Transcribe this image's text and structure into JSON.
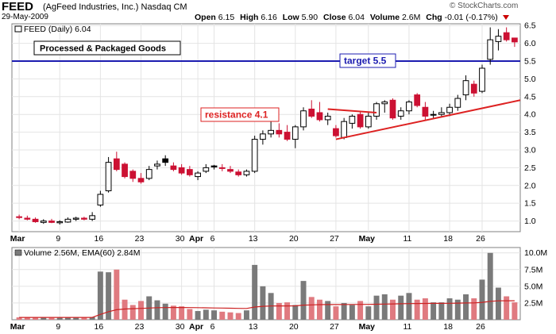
{
  "header": {
    "ticker": "FEED",
    "company": "(AgFeed Industries, Inc.)",
    "exchange": "Nasdaq CM",
    "date": "29-May-2009",
    "brand": "© StockCharts.com",
    "quote": [
      {
        "label": "Open",
        "value": "6.15"
      },
      {
        "label": "High",
        "value": "6.16"
      },
      {
        "label": "Low",
        "value": "5.90"
      },
      {
        "label": "Close",
        "value": "6.04"
      },
      {
        "label": "Volume",
        "value": "2.6M"
      },
      {
        "label": "Chg",
        "value": "-0.01 (-0.17%)"
      }
    ]
  },
  "chart_data": [
    {
      "type": "candlestick",
      "legend": "FEED (Daily) 6.04",
      "ylim": [
        0.7,
        6.55
      ],
      "yticks": [
        1.0,
        1.5,
        2.0,
        2.5,
        3.0,
        3.5,
        4.0,
        4.5,
        5.0,
        5.5,
        6.0,
        6.5
      ],
      "xticks": [
        {
          "label": "Mar",
          "i": 0,
          "bold": true
        },
        {
          "label": "9",
          "i": 5,
          "bold": false
        },
        {
          "label": "16",
          "i": 10,
          "bold": false
        },
        {
          "label": "23",
          "i": 15,
          "bold": false
        },
        {
          "label": "30",
          "i": 20,
          "bold": false
        },
        {
          "label": "Apr",
          "i": 22,
          "bold": true
        },
        {
          "label": "6",
          "i": 24,
          "bold": false
        },
        {
          "label": "13",
          "i": 29,
          "bold": false
        },
        {
          "label": "20",
          "i": 34,
          "bold": false
        },
        {
          "label": "27",
          "i": 39,
          "bold": false
        },
        {
          "label": "May",
          "i": 43,
          "bold": true
        },
        {
          "label": "11",
          "i": 48,
          "bold": false
        },
        {
          "label": "18",
          "i": 53,
          "bold": false
        },
        {
          "label": "26",
          "i": 57,
          "bold": false
        }
      ],
      "annotations": {
        "sector": "Processed & Packaged Goods",
        "target": {
          "label": "target 5.5",
          "value": 5.5
        },
        "resistance": {
          "label": "resistance 4.1",
          "start": [
            38,
            4.15
          ],
          "end": [
            44,
            4.05
          ]
        },
        "trendline": {
          "start": [
            39,
            3.3
          ],
          "end": [
            60,
            4.4
          ]
        }
      },
      "candles": [
        {
          "o": 1.12,
          "h": 1.18,
          "l": 1.05,
          "c": 1.1
        },
        {
          "o": 1.08,
          "h": 1.15,
          "l": 1.02,
          "c": 1.05
        },
        {
          "o": 1.05,
          "h": 1.1,
          "l": 0.95,
          "c": 0.98
        },
        {
          "o": 0.96,
          "h": 1.05,
          "l": 0.92,
          "c": 1.0
        },
        {
          "o": 1.0,
          "h": 1.06,
          "l": 0.94,
          "c": 0.96
        },
        {
          "o": 0.95,
          "h": 1.02,
          "l": 0.9,
          "c": 0.98
        },
        {
          "o": 0.97,
          "h": 1.1,
          "l": 0.95,
          "c": 1.05
        },
        {
          "o": 1.05,
          "h": 1.12,
          "l": 1.0,
          "c": 1.08
        },
        {
          "o": 1.08,
          "h": 1.12,
          "l": 1.02,
          "c": 1.05
        },
        {
          "o": 1.05,
          "h": 1.25,
          "l": 1.0,
          "c": 1.15
        },
        {
          "o": 1.45,
          "h": 1.85,
          "l": 1.4,
          "c": 1.75
        },
        {
          "o": 1.85,
          "h": 2.8,
          "l": 1.8,
          "c": 2.65
        },
        {
          "o": 2.75,
          "h": 2.95,
          "l": 2.4,
          "c": 2.45
        },
        {
          "o": 2.6,
          "h": 2.65,
          "l": 2.2,
          "c": 2.25
        },
        {
          "o": 2.4,
          "h": 2.45,
          "l": 2.1,
          "c": 2.2
        },
        {
          "o": 2.2,
          "h": 2.35,
          "l": 2.05,
          "c": 2.1
        },
        {
          "o": 2.2,
          "h": 2.55,
          "l": 2.15,
          "c": 2.45
        },
        {
          "o": 2.55,
          "h": 2.7,
          "l": 2.45,
          "c": 2.6
        },
        {
          "o": 2.75,
          "h": 2.85,
          "l": 2.55,
          "c": 2.65
        },
        {
          "o": 2.55,
          "h": 2.65,
          "l": 2.4,
          "c": 2.45
        },
        {
          "o": 2.5,
          "h": 2.6,
          "l": 2.3,
          "c": 2.35
        },
        {
          "o": 2.45,
          "h": 2.55,
          "l": 2.25,
          "c": 2.3
        },
        {
          "o": 2.25,
          "h": 2.4,
          "l": 2.15,
          "c": 2.35
        },
        {
          "o": 2.4,
          "h": 2.6,
          "l": 2.35,
          "c": 2.5
        },
        {
          "o": 2.55,
          "h": 2.58,
          "l": 2.45,
          "c": 2.52
        },
        {
          "o": 2.5,
          "h": 2.6,
          "l": 2.4,
          "c": 2.48
        },
        {
          "o": 2.45,
          "h": 2.55,
          "l": 2.35,
          "c": 2.4
        },
        {
          "o": 2.38,
          "h": 2.45,
          "l": 2.25,
          "c": 2.3
        },
        {
          "o": 2.3,
          "h": 2.45,
          "l": 2.25,
          "c": 2.4
        },
        {
          "o": 2.4,
          "h": 3.4,
          "l": 2.35,
          "c": 3.3
        },
        {
          "o": 3.3,
          "h": 3.55,
          "l": 3.15,
          "c": 3.45
        },
        {
          "o": 3.45,
          "h": 3.85,
          "l": 3.35,
          "c": 3.55
        },
        {
          "o": 3.55,
          "h": 3.75,
          "l": 3.35,
          "c": 3.45
        },
        {
          "o": 3.5,
          "h": 3.7,
          "l": 3.25,
          "c": 3.3
        },
        {
          "o": 3.3,
          "h": 3.7,
          "l": 3.05,
          "c": 3.65
        },
        {
          "o": 3.65,
          "h": 4.2,
          "l": 3.55,
          "c": 4.1
        },
        {
          "o": 4.15,
          "h": 4.4,
          "l": 3.9,
          "c": 3.95
        },
        {
          "o": 4.05,
          "h": 4.35,
          "l": 3.8,
          "c": 3.85
        },
        {
          "o": 3.85,
          "h": 4.05,
          "l": 3.7,
          "c": 3.95
        },
        {
          "o": 3.6,
          "h": 3.7,
          "l": 3.35,
          "c": 3.4
        },
        {
          "o": 3.35,
          "h": 3.9,
          "l": 3.3,
          "c": 3.8
        },
        {
          "o": 3.75,
          "h": 4.0,
          "l": 3.6,
          "c": 3.95
        },
        {
          "o": 4.0,
          "h": 4.1,
          "l": 3.6,
          "c": 3.65
        },
        {
          "o": 3.65,
          "h": 4.05,
          "l": 3.6,
          "c": 3.95
        },
        {
          "o": 3.95,
          "h": 4.35,
          "l": 3.85,
          "c": 4.3
        },
        {
          "o": 4.3,
          "h": 4.4,
          "l": 4.05,
          "c": 4.35
        },
        {
          "o": 4.4,
          "h": 4.45,
          "l": 3.85,
          "c": 3.9
        },
        {
          "o": 3.95,
          "h": 4.2,
          "l": 3.85,
          "c": 4.1
        },
        {
          "o": 4.1,
          "h": 4.4,
          "l": 4.0,
          "c": 4.35
        },
        {
          "o": 4.55,
          "h": 4.6,
          "l": 4.2,
          "c": 4.25
        },
        {
          "o": 4.2,
          "h": 4.35,
          "l": 3.85,
          "c": 3.95
        },
        {
          "o": 3.98,
          "h": 4.1,
          "l": 3.9,
          "c": 4.0
        },
        {
          "o": 4.0,
          "h": 4.2,
          "l": 3.95,
          "c": 4.05
        },
        {
          "o": 4.05,
          "h": 4.3,
          "l": 3.95,
          "c": 4.2
        },
        {
          "o": 4.2,
          "h": 4.55,
          "l": 4.1,
          "c": 4.45
        },
        {
          "o": 4.55,
          "h": 5.1,
          "l": 4.4,
          "c": 4.95
        },
        {
          "o": 4.85,
          "h": 4.95,
          "l": 4.5,
          "c": 4.6
        },
        {
          "o": 4.65,
          "h": 5.4,
          "l": 4.6,
          "c": 5.3
        },
        {
          "o": 5.55,
          "h": 6.45,
          "l": 5.4,
          "c": 6.1
        },
        {
          "o": 6.05,
          "h": 6.4,
          "l": 5.8,
          "c": 6.2
        },
        {
          "o": 6.3,
          "h": 6.45,
          "l": 6.05,
          "c": 6.1
        },
        {
          "o": 6.15,
          "h": 6.16,
          "l": 5.9,
          "c": 6.04
        }
      ]
    },
    {
      "type": "bar",
      "legend": "Volume 2.56M, EMA(60) 2.84M",
      "ylim": [
        0,
        10.8
      ],
      "yticks": [
        {
          "v": 2.5,
          "label": "2.5M"
        },
        {
          "v": 5.0,
          "label": "5.0M"
        },
        {
          "v": 7.5,
          "label": "7.5M"
        },
        {
          "v": 10.0,
          "label": "10.0M"
        }
      ],
      "volume": [
        0.35,
        0.3,
        0.3,
        0.3,
        0.28,
        0.3,
        0.3,
        0.35,
        0.3,
        0.4,
        7.2,
        7.1,
        7.5,
        3.0,
        2.2,
        2.8,
        3.5,
        2.9,
        2.4,
        2.1,
        2.0,
        1.6,
        1.3,
        1.5,
        1.4,
        1.2,
        1.1,
        1.0,
        1.4,
        8.2,
        5.0,
        4.0,
        2.5,
        2.6,
        2.2,
        5.8,
        3.4,
        3.0,
        2.8,
        2.0,
        2.5,
        2.2,
        2.8,
        2.0,
        3.6,
        3.8,
        3.0,
        3.6,
        4.0,
        3.0,
        3.2,
        2.6,
        2.6,
        3.2,
        3.0,
        3.8,
        3.2,
        6.0,
        10.0,
        4.8,
        3.5,
        2.6
      ],
      "ema": [
        0.35,
        0.35,
        0.34,
        0.34,
        0.34,
        0.34,
        0.34,
        0.34,
        0.34,
        0.34,
        0.8,
        1.2,
        1.5,
        1.6,
        1.65,
        1.7,
        1.75,
        1.8,
        1.82,
        1.83,
        1.83,
        1.82,
        1.8,
        1.78,
        1.76,
        1.74,
        1.72,
        1.7,
        1.69,
        1.9,
        2.0,
        2.05,
        2.06,
        2.07,
        2.08,
        2.18,
        2.22,
        2.25,
        2.27,
        2.27,
        2.28,
        2.28,
        2.29,
        2.29,
        2.31,
        2.34,
        2.36,
        2.38,
        2.41,
        2.42,
        2.43,
        2.44,
        2.45,
        2.46,
        2.48,
        2.5,
        2.52,
        2.6,
        2.75,
        2.82,
        2.84,
        2.84
      ]
    }
  ]
}
